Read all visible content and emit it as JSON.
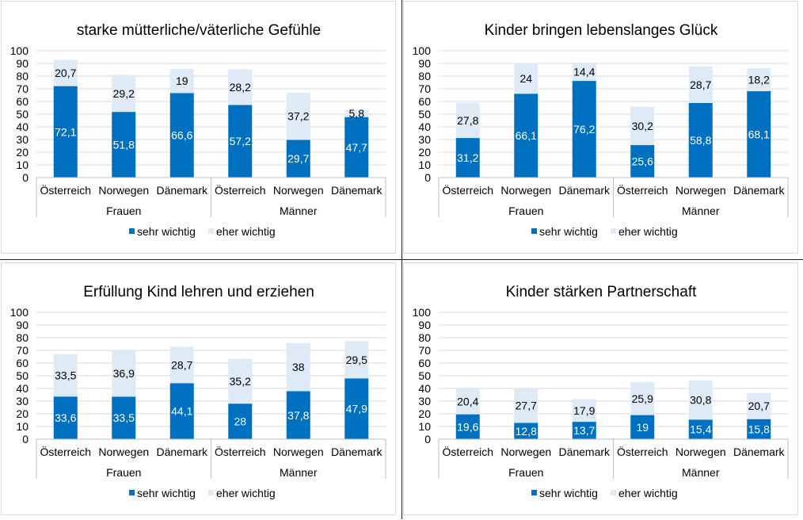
{
  "colors": {
    "sehr_wichtig": "#0070C0",
    "eher_wichtig": "#DEEBF7"
  },
  "chart_data": [
    {
      "type": "bar",
      "stacked": true,
      "title": "starke mütterliche/väterliche Gefühle",
      "categories": [
        "Österreich",
        "Norwegen",
        "Dänemark",
        "Österreich",
        "Norwegen",
        "Dänemark"
      ],
      "groups": [
        "Frauen",
        "Männer"
      ],
      "ylim": [
        0,
        100
      ],
      "yticks": [
        0,
        10,
        20,
        30,
        40,
        50,
        60,
        70,
        80,
        90,
        100
      ],
      "grid": true,
      "legend": "bottom",
      "series": [
        {
          "name": "sehr wichtig",
          "values": [
            72.1,
            51.8,
            66.6,
            57.2,
            29.7,
            47.7
          ],
          "labels": [
            "72,1",
            "51,8",
            "66,6",
            "57,2",
            "29,7",
            "47,7"
          ]
        },
        {
          "name": "eher wichtig",
          "values": [
            20.7,
            29.2,
            19,
            28.2,
            37.2,
            5.8
          ],
          "labels": [
            "20,7",
            "29,2",
            "19",
            "28,2",
            "37,2",
            "5,8"
          ]
        }
      ]
    },
    {
      "type": "bar",
      "stacked": true,
      "title": "Kinder bringen lebenslanges Glück",
      "categories": [
        "Österreich",
        "Norwegen",
        "Dänemark",
        "Österreich",
        "Norwegen",
        "Dänemark"
      ],
      "groups": [
        "Frauen",
        "Männer"
      ],
      "ylim": [
        0,
        100
      ],
      "yticks": [
        0,
        10,
        20,
        30,
        40,
        50,
        60,
        70,
        80,
        90,
        100
      ],
      "grid": true,
      "legend": "bottom",
      "series": [
        {
          "name": "sehr wichtig",
          "values": [
            31.2,
            66.1,
            76.2,
            25.6,
            58.8,
            68.1
          ],
          "labels": [
            "31,2",
            "66,1",
            "76,2",
            "25,6",
            "58,8",
            "68,1"
          ]
        },
        {
          "name": "eher wichtig",
          "values": [
            27.8,
            24,
            14.4,
            30.2,
            28.7,
            18.2
          ],
          "labels": [
            "27,8",
            "24",
            "14,4",
            "30,2",
            "28,7",
            "18,2"
          ]
        }
      ]
    },
    {
      "type": "bar",
      "stacked": true,
      "title": "Erfüllung Kind lehren und erziehen",
      "categories": [
        "Österreich",
        "Norwegen",
        "Dänemark",
        "Österreich",
        "Norwegen",
        "Dänemark"
      ],
      "groups": [
        "Frauen",
        "Männer"
      ],
      "ylim": [
        0,
        100
      ],
      "yticks": [
        0,
        10,
        20,
        30,
        40,
        50,
        60,
        70,
        80,
        90,
        100
      ],
      "grid": true,
      "legend": "bottom",
      "series": [
        {
          "name": "sehr wichtig",
          "values": [
            33.6,
            33.5,
            44.1,
            28,
            37.8,
            47.9
          ],
          "labels": [
            "33,6",
            "33,5",
            "44,1",
            "28",
            "37,8",
            "47,9"
          ]
        },
        {
          "name": "eher wichtig",
          "values": [
            33.5,
            36.9,
            28.7,
            35.2,
            38,
            29.5
          ],
          "labels": [
            "33,5",
            "36,9",
            "28,7",
            "35,2",
            "38",
            "29,5"
          ]
        }
      ]
    },
    {
      "type": "bar",
      "stacked": true,
      "title": "Kinder stärken Partnerschaft",
      "categories": [
        "Österreich",
        "Norwegen",
        "Dänemark",
        "Österreich",
        "Norwegen",
        "Dänemark"
      ],
      "groups": [
        "Frauen",
        "Männer"
      ],
      "ylim": [
        0,
        100
      ],
      "yticks": [
        0,
        10,
        20,
        30,
        40,
        50,
        60,
        70,
        80,
        90,
        100
      ],
      "grid": true,
      "legend": "bottom",
      "series": [
        {
          "name": "sehr wichtig",
          "values": [
            19.6,
            12.8,
            13.7,
            19,
            15.4,
            15.8
          ],
          "labels": [
            "19,6",
            "12,8",
            "13,7",
            "19",
            "15,4",
            "15,8"
          ]
        },
        {
          "name": "eher wichtig",
          "values": [
            20.4,
            27.7,
            17.9,
            25.9,
            30.8,
            20.7
          ],
          "labels": [
            "20,4",
            "27,7",
            "17,9",
            "25,9",
            "30,8",
            "20,7"
          ]
        }
      ]
    }
  ]
}
